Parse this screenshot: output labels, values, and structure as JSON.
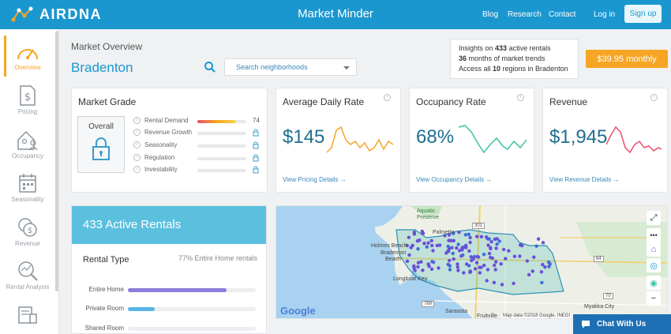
{
  "header": {
    "logo_text": "AIRDNA",
    "app_title": "Market Minder",
    "nav": [
      "Blog",
      "Research",
      "Contact"
    ],
    "login": "Log in",
    "signup": "Sign up"
  },
  "sidebar": {
    "items": [
      {
        "label": "Overview",
        "icon": "gauge-icon"
      },
      {
        "label": "Pricing",
        "icon": "dollar-document-icon"
      },
      {
        "label": "Occupancy",
        "icon": "house-people-icon"
      },
      {
        "label": "Seasonality",
        "icon": "calendar-icon"
      },
      {
        "label": "Revenue",
        "icon": "coins-icon"
      },
      {
        "label": "Rental Analysis",
        "icon": "magnifier-chart-icon"
      },
      {
        "label": "",
        "icon": "data-table-icon"
      }
    ]
  },
  "overview": {
    "section_title": "Market Overview",
    "city": "Bradenton",
    "search_placeholder": "Search neighborhoods"
  },
  "insights": {
    "line1_pre": "Insights on ",
    "line1_num": "433",
    "line1_post": " active rentals",
    "line2_num": "36",
    "line2_post": " months of market trends",
    "line3_pre": "Access all ",
    "line3_num": "10",
    "line3_post": " regions in Bradenton"
  },
  "price_button": "$39.95 monthly",
  "market_grade": {
    "title": "Market Grade",
    "overall_label": "Overall",
    "rows": [
      {
        "label": "Rental Demand",
        "value": "74",
        "fill": 0.78
      },
      {
        "label": "Revenue Growth"
      },
      {
        "label": "Seasonality"
      },
      {
        "label": "Regulation"
      },
      {
        "label": "Investability"
      }
    ]
  },
  "metrics": [
    {
      "title": "Average Daily Rate",
      "value": "$145",
      "link": "View Pricing Details →",
      "color": "#f6a524"
    },
    {
      "title": "Occupancy Rate",
      "value": "68%",
      "link": "View Occupancy Details →",
      "color": "#3cc4a4"
    },
    {
      "title": "Revenue",
      "value": "$1,945",
      "link": "View Revenue Details →",
      "color": "#e8506c"
    }
  ],
  "rentals": {
    "header": "433 Active Rentals",
    "type_title": "Rental Type",
    "type_sub": "77% Entire Home rentals",
    "types": [
      {
        "label": "Entire Home",
        "share": 0.77,
        "color": "#8e7cdc"
      },
      {
        "label": "Private Room",
        "share": 0.21,
        "color": "#5ab4e6"
      },
      {
        "label": "Shared Room",
        "share": 0.0,
        "color": "#5ab4e6"
      }
    ]
  },
  "map": {
    "labels": [
      "Aquatic",
      "Preserve",
      "Palmetto",
      "Holmes Beach",
      "Bradenton",
      "Beach",
      "Longboat Key",
      "Sarasota",
      "Fruitville",
      "Myakka City",
      "301",
      "64",
      "789",
      "70"
    ],
    "google": "Google",
    "attribution": "Map data ©2018 Google, INEGI"
  },
  "chat": "Chat With Us"
}
